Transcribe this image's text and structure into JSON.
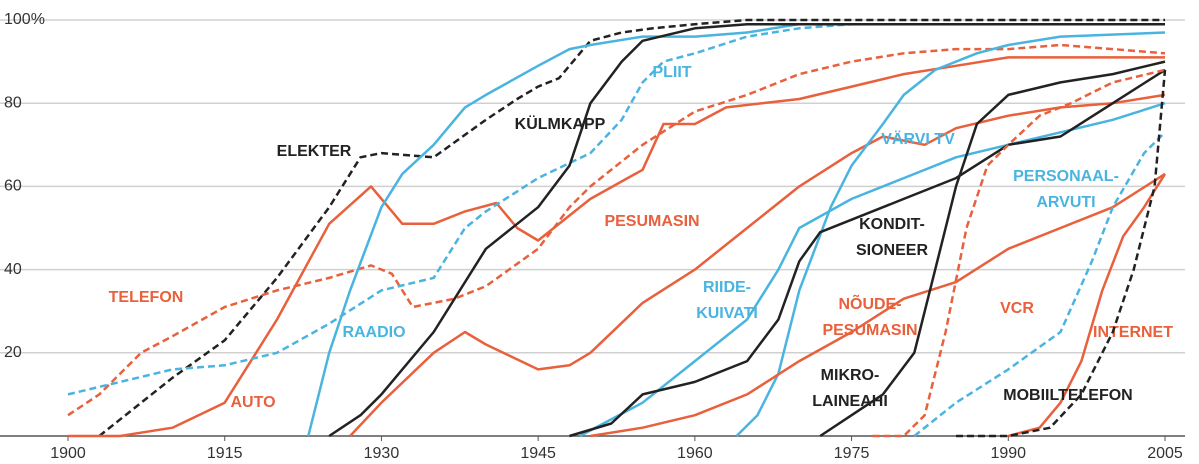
{
  "chart_data": {
    "type": "line",
    "xlim": [
      1900,
      2005
    ],
    "xticks": [
      1900,
      1915,
      1930,
      1945,
      1960,
      1975,
      1990,
      2005
    ],
    "ylim": [
      0,
      100
    ],
    "yticks": [
      20,
      40,
      60,
      80,
      {
        "value": 100,
        "label": "100%"
      }
    ],
    "grid": true,
    "series": [
      {
        "label": [
          "ELEKTER"
        ],
        "color": "#222222",
        "dashed": true,
        "x": [
          1903,
          1910,
          1915,
          1920,
          1925,
          1928,
          1930,
          1935,
          1940,
          1943,
          1945,
          1947,
          1950,
          1953,
          1956,
          1960,
          1965,
          2005
        ],
        "values": [
          0,
          14,
          23,
          38,
          55,
          67,
          68,
          67,
          76,
          81,
          84,
          86,
          95,
          97,
          98,
          99,
          100,
          100
        ]
      },
      {
        "label": [
          "TELEFON"
        ],
        "color": "#e8603c",
        "dashed": true,
        "x": [
          1900,
          1903,
          1907,
          1910,
          1915,
          1920,
          1925,
          1929,
          1931,
          1933,
          1937,
          1940,
          1945,
          1948,
          1950,
          1955,
          1960,
          1965,
          1970,
          1975,
          1980,
          1985,
          1990,
          1995,
          2000,
          2005
        ],
        "values": [
          5,
          10,
          20,
          24,
          31,
          35,
          38,
          41,
          39,
          31,
          33,
          36,
          45,
          55,
          60,
          70,
          78,
          82,
          87,
          90,
          92,
          93,
          93,
          94,
          93,
          92
        ]
      },
      {
        "label": [
          "AUTO"
        ],
        "color": "#e8603c",
        "dashed": false,
        "x": [
          1900,
          1905,
          1910,
          1915,
          1920,
          1925,
          1929,
          1932,
          1935,
          1938,
          1941,
          1943,
          1945,
          1950,
          1955,
          1957,
          1960,
          1963,
          1970,
          1975,
          1980,
          1985,
          1990,
          1995,
          2000,
          2005
        ],
        "values": [
          0,
          0,
          2,
          8,
          28,
          51,
          60,
          51,
          51,
          54,
          56,
          50,
          47,
          57,
          64,
          75,
          75,
          79,
          81,
          84,
          87,
          89,
          91,
          91,
          91,
          91
        ]
      },
      {
        "label": [
          "RAADIO"
        ],
        "color": "#4ab4e0",
        "dashed": false,
        "x": [
          1923,
          1925,
          1927,
          1930,
          1932,
          1935,
          1938,
          1940,
          1945,
          1948,
          1950,
          1955,
          1960,
          1965,
          1970,
          2005
        ],
        "values": [
          0,
          20,
          35,
          55,
          63,
          70,
          79,
          82,
          89,
          93,
          94,
          96,
          96,
          97,
          99,
          99
        ]
      },
      {
        "label": [
          "PLIIT"
        ],
        "color": "#4ab4e0",
        "dashed": true,
        "x": [
          1900,
          1905,
          1910,
          1915,
          1920,
          1925,
          1930,
          1935,
          1938,
          1940,
          1945,
          1950,
          1953,
          1955,
          1957,
          1960,
          1965,
          1970,
          1975,
          2005
        ],
        "values": [
          10,
          13,
          16,
          17,
          20,
          27,
          35,
          38,
          50,
          54,
          62,
          68,
          76,
          85,
          90,
          92,
          96,
          98,
          99,
          99
        ]
      },
      {
        "label": [
          "KÜLMKAPP"
        ],
        "color": "#222222",
        "dashed": false,
        "x": [
          1925,
          1928,
          1930,
          1935,
          1940,
          1945,
          1948,
          1950,
          1953,
          1955,
          1960,
          1965,
          2005
        ],
        "values": [
          0,
          5,
          10,
          25,
          45,
          55,
          65,
          80,
          90,
          95,
          98,
          99,
          99
        ]
      },
      {
        "label": [
          "PESUMASIN"
        ],
        "color": "#e8603c",
        "dashed": false,
        "x": [
          1927,
          1930,
          1935,
          1938,
          1940,
          1945,
          1948,
          1950,
          1955,
          1960,
          1965,
          1970,
          1975,
          1978,
          1982,
          1985,
          1990,
          1995,
          2000,
          2005
        ],
        "values": [
          0,
          8,
          20,
          25,
          22,
          16,
          17,
          20,
          32,
          40,
          50,
          60,
          68,
          72,
          70,
          74,
          77,
          79,
          80,
          82
        ]
      },
      {
        "label": [
          "VÄRVI TV"
        ],
        "color": "#4ab4e0",
        "dashed": false,
        "x": [
          1964,
          1966,
          1968,
          1970,
          1973,
          1975,
          1978,
          1980,
          1983,
          1987,
          1990,
          1995,
          2005
        ],
        "values": [
          0,
          5,
          15,
          35,
          55,
          65,
          75,
          82,
          88,
          92,
          94,
          96,
          97
        ]
      },
      {
        "label": [
          "RIIDE-",
          "KUIVATI"
        ],
        "color": "#4ab4e0",
        "dashed": false,
        "x": [
          1949,
          1955,
          1960,
          1965,
          1968,
          1970,
          1975,
          1980,
          1985,
          1990,
          1995,
          2000,
          2005
        ],
        "values": [
          0,
          8,
          18,
          28,
          40,
          50,
          57,
          62,
          67,
          70,
          73,
          76,
          80
        ]
      },
      {
        "label": [
          "KONDIT-",
          "SIONEER"
        ],
        "color": "#222222",
        "dashed": false,
        "x": [
          1948,
          1952,
          1955,
          1960,
          1965,
          1968,
          1970,
          1972,
          1975,
          1980,
          1985,
          1990,
          1995,
          2000,
          2005
        ],
        "values": [
          0,
          3,
          10,
          13,
          18,
          28,
          42,
          49,
          52,
          57,
          62,
          70,
          72,
          80,
          88
        ]
      },
      {
        "label": [
          "NÕUDE-",
          "PESUMASIN"
        ],
        "color": "#e8603c",
        "dashed": false,
        "x": [
          1950,
          1955,
          1960,
          1965,
          1970,
          1975,
          1980,
          1985,
          1990,
          1995,
          2000,
          2005
        ],
        "values": [
          0,
          2,
          5,
          10,
          18,
          25,
          33,
          37,
          45,
          50,
          55,
          63
        ]
      },
      {
        "label": [
          "MIKRO-",
          "LAINEAHI"
        ],
        "color": "#222222",
        "dashed": false,
        "x": [
          1972,
          1975,
          1978,
          1981,
          1983,
          1985,
          1987,
          1990,
          1995,
          2000,
          2005
        ],
        "values": [
          0,
          5,
          10,
          20,
          40,
          60,
          75,
          82,
          85,
          87,
          90
        ]
      },
      {
        "label": [
          "VCR"
        ],
        "color": "#e8603c",
        "dashed": true,
        "x": [
          1977,
          1980,
          1982,
          1984,
          1986,
          1988,
          1990,
          1993,
          1996,
          2000,
          2005
        ],
        "values": [
          0,
          0,
          5,
          25,
          50,
          65,
          70,
          77,
          80,
          85,
          88
        ]
      },
      {
        "label": [
          "PERSONAAL-",
          "ARVUTI"
        ],
        "color": "#4ab4e0",
        "dashed": true,
        "x": [
          1981,
          1985,
          1990,
          1995,
          1998,
          2000,
          2003,
          2005
        ],
        "values": [
          0,
          8,
          16,
          25,
          42,
          55,
          68,
          73
        ]
      },
      {
        "label": [
          "INTERNET"
        ],
        "color": "#e8603c",
        "dashed": false,
        "x": [
          1990,
          1993,
          1995,
          1997,
          1999,
          2001,
          2003,
          2005
        ],
        "values": [
          0,
          2,
          8,
          18,
          35,
          48,
          55,
          63
        ]
      },
      {
        "label": [
          "MOBIILTELEFON"
        ],
        "color": "#222222",
        "dashed": true,
        "x": [
          1985,
          1990,
          1994,
          1997,
          2000,
          2002,
          2004,
          2005
        ],
        "values": [
          0,
          0,
          2,
          10,
          25,
          40,
          60,
          88
        ]
      }
    ]
  }
}
